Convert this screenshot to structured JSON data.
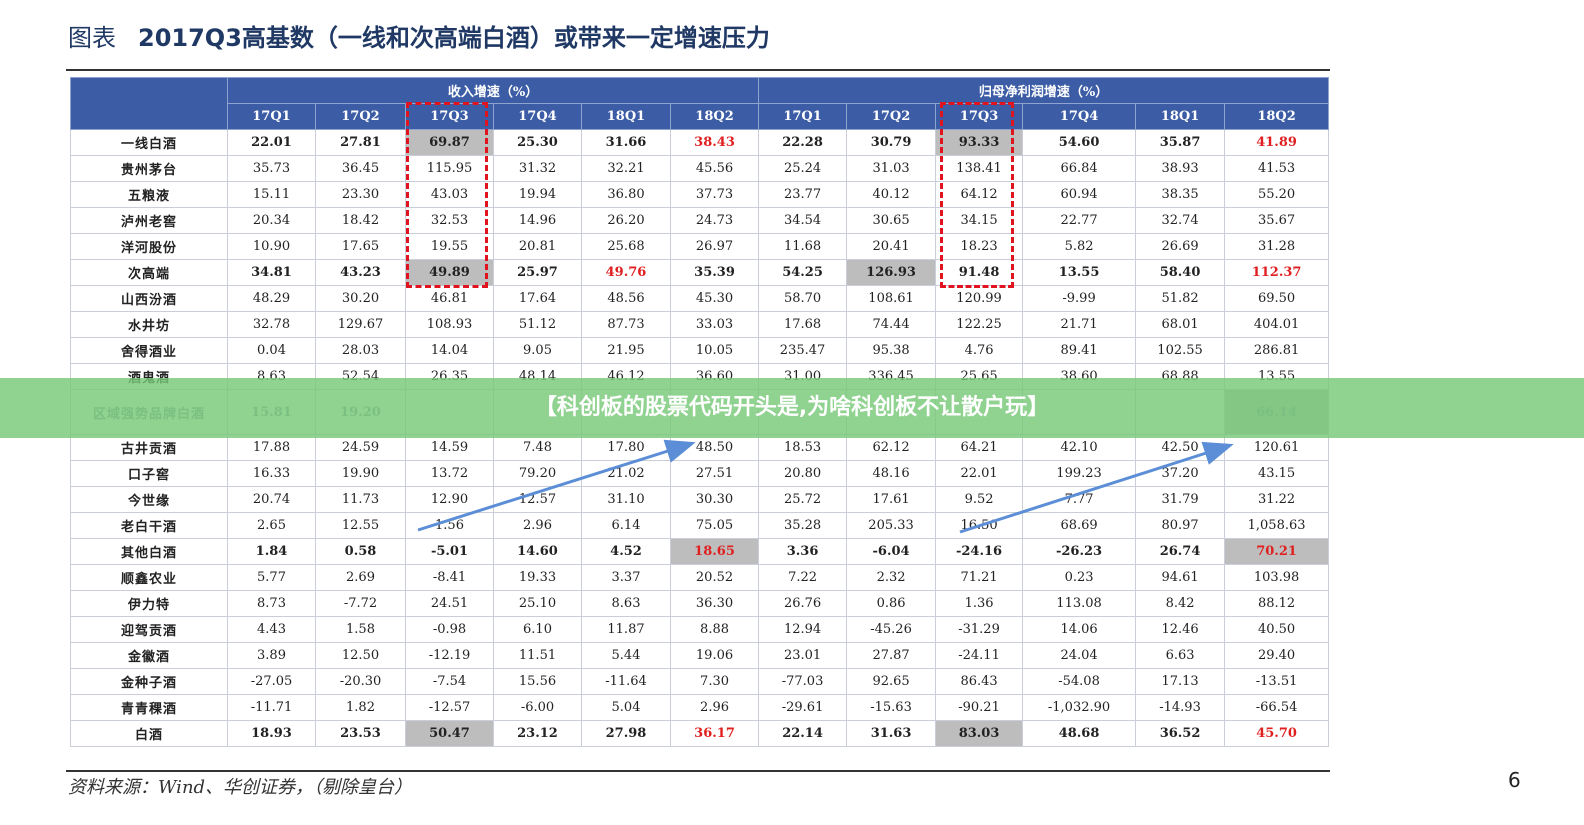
{
  "header": {
    "label": "图表",
    "title": "2017Q3高基数（一线和次高端白酒）或带来一定增速压力"
  },
  "table": {
    "groups": [
      "收入增速（%）",
      "归母净利润增速（%）"
    ],
    "columns": [
      "17Q1",
      "17Q2",
      "17Q3",
      "17Q4",
      "18Q1",
      "18Q2",
      "17Q1",
      "17Q2",
      "17Q3",
      "17Q4",
      "18Q1",
      "18Q2"
    ],
    "rows": [
      [
        "一线白酒",
        "22.01",
        "27.81",
        "69.87",
        "25.30",
        "31.66",
        "38.43",
        "22.28",
        "30.79",
        "93.33",
        "54.60",
        "35.87",
        "41.89"
      ],
      [
        "贵州茅台",
        "35.73",
        "36.45",
        "115.95",
        "31.32",
        "32.21",
        "45.56",
        "25.24",
        "31.03",
        "138.41",
        "66.84",
        "38.93",
        "41.53"
      ],
      [
        "五粮液",
        "15.11",
        "23.30",
        "43.03",
        "19.94",
        "36.80",
        "37.73",
        "23.77",
        "40.12",
        "64.12",
        "60.94",
        "38.35",
        "55.20"
      ],
      [
        "泸州老窖",
        "20.34",
        "18.42",
        "32.53",
        "14.96",
        "26.20",
        "24.73",
        "34.54",
        "30.65",
        "34.15",
        "22.77",
        "32.74",
        "35.67"
      ],
      [
        "洋河股份",
        "10.90",
        "17.65",
        "19.55",
        "20.81",
        "25.68",
        "26.97",
        "11.68",
        "20.41",
        "18.23",
        "5.82",
        "26.69",
        "31.28"
      ],
      [
        "次高端",
        "34.81",
        "43.23",
        "49.89",
        "25.97",
        "49.76",
        "35.39",
        "54.25",
        "126.93",
        "91.48",
        "13.55",
        "58.40",
        "112.37"
      ],
      [
        "山西汾酒",
        "48.29",
        "30.20",
        "46.81",
        "17.64",
        "48.56",
        "45.30",
        "58.70",
        "108.61",
        "120.99",
        "-9.99",
        "51.82",
        "69.50"
      ],
      [
        "水井坊",
        "32.78",
        "129.67",
        "108.93",
        "51.12",
        "87.73",
        "33.03",
        "17.68",
        "74.44",
        "122.25",
        "21.71",
        "68.01",
        "404.01"
      ],
      [
        "舍得酒业",
        "0.04",
        "28.03",
        "14.04",
        "9.05",
        "21.95",
        "10.05",
        "235.47",
        "95.38",
        "4.76",
        "89.41",
        "102.55",
        "286.81"
      ],
      [
        "酒鬼酒",
        "8.63",
        "52.54",
        "26.35",
        "48.14",
        "46.12",
        "36.60",
        "31.00",
        "336.45",
        "25.65",
        "38.60",
        "68.88",
        "13.55"
      ],
      [
        "区域强势品牌白酒",
        "15.81",
        "19.20",
        null,
        null,
        null,
        null,
        null,
        null,
        null,
        null,
        null,
        "66.14"
      ],
      [
        "古井贡酒",
        "17.88",
        "24.59",
        "14.59",
        "7.48",
        "17.80",
        "48.50",
        "18.53",
        "62.12",
        "64.21",
        "42.10",
        "42.50",
        "120.61"
      ],
      [
        "口子窖",
        "16.33",
        "19.90",
        "13.72",
        "79.20",
        "21.02",
        "27.51",
        "20.80",
        "48.16",
        "22.01",
        "199.23",
        "37.20",
        "43.15"
      ],
      [
        "今世缘",
        "20.74",
        "11.73",
        "12.90",
        "12.57",
        "31.10",
        "30.30",
        "25.72",
        "17.61",
        "9.52",
        "7.77",
        "31.79",
        "31.22"
      ],
      [
        "老白干酒",
        "2.65",
        "12.55",
        "1.56",
        "2.96",
        "6.14",
        "75.05",
        "35.28",
        "205.33",
        "16.50",
        "68.69",
        "80.97",
        "1,058.63"
      ],
      [
        "其他白酒",
        "1.84",
        "0.58",
        "-5.01",
        "14.60",
        "4.52",
        "18.65",
        "3.36",
        "-6.04",
        "-24.16",
        "-26.23",
        "26.74",
        "70.21"
      ],
      [
        "顺鑫农业",
        "5.77",
        "2.69",
        "-8.41",
        "19.33",
        "3.37",
        "20.52",
        "7.22",
        "2.32",
        "71.21",
        "0.23",
        "94.61",
        "103.98"
      ],
      [
        "伊力特",
        "8.73",
        "-7.72",
        "24.51",
        "25.10",
        "8.63",
        "36.30",
        "26.76",
        "0.86",
        "1.36",
        "113.08",
        "8.42",
        "88.12"
      ],
      [
        "迎驾贡酒",
        "4.43",
        "1.58",
        "-0.98",
        "6.10",
        "11.87",
        "8.88",
        "12.94",
        "-45.26",
        "-31.29",
        "14.06",
        "12.46",
        "40.50"
      ],
      [
        "金徽酒",
        "3.89",
        "12.50",
        "-12.19",
        "11.51",
        "5.44",
        "19.06",
        "23.01",
        "27.87",
        "-24.11",
        "24.04",
        "6.63",
        "29.40"
      ],
      [
        "金种子酒",
        "-27.05",
        "-20.30",
        "-7.54",
        "15.56",
        "-11.64",
        "7.30",
        "-77.03",
        "92.65",
        "86.43",
        "-54.08",
        "17.13",
        "-13.51"
      ],
      [
        "青青稞酒",
        "-11.71",
        "1.82",
        "-12.57",
        "-6.00",
        "5.04",
        "2.96",
        "-29.61",
        "-15.63",
        "-90.21",
        "-1,032.90",
        "-14.93",
        "-66.54"
      ],
      [
        "白酒",
        "18.93",
        "23.53",
        "50.47",
        "23.12",
        "27.98",
        "36.17",
        "22.14",
        "31.63",
        "83.03",
        "48.68",
        "36.52",
        "45.70"
      ]
    ]
  },
  "footer": {
    "source": "资料来源：Wind、华创证券，（剔除皇台）",
    "page_number": "6"
  },
  "banner": {
    "text": "【科创板的股票代码开头是,为啥科创板不让散户玩】"
  }
}
